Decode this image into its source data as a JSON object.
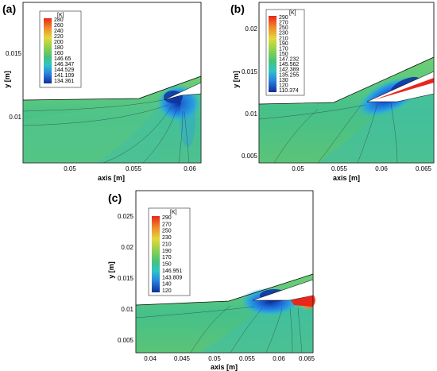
{
  "figure": {
    "panels": [
      {
        "letter": "(a)",
        "unit": "[K]",
        "legend": [
          "280",
          "260",
          "240",
          "220",
          "200",
          "180",
          "160",
          "146.65",
          "146.347",
          "144.529",
          "141.109",
          "134.361"
        ],
        "xticks": [
          "0.05",
          "0.055",
          "0.06"
        ],
        "yticks": [
          "0.015",
          "0.01"
        ],
        "xlabel": "axis [m]",
        "ylabel": "y [m]"
      },
      {
        "letter": "(b)",
        "unit": "[K]",
        "legend": [
          "290",
          "270",
          "250",
          "230",
          "210",
          "190",
          "170",
          "150",
          "147.232",
          "145.562",
          "142.389",
          "135.255",
          "130",
          "120",
          "110.374"
        ],
        "xticks": [
          "0.05",
          "0.055",
          "0.06",
          "0.065"
        ],
        "yticks": [
          "0.02",
          "0.015",
          "0.01",
          "0.005"
        ],
        "xlabel": "axis [m]",
        "ylabel": "y [m]"
      },
      {
        "letter": "(c)",
        "unit": "[K]",
        "legend": [
          "290",
          "270",
          "250",
          "230",
          "210",
          "190",
          "170",
          "150",
          "146.951",
          "143.809",
          "140",
          "120"
        ],
        "xticks": [
          "0.04",
          "0.045",
          "0.05",
          "0.055",
          "0.06",
          "0.065"
        ],
        "yticks": [
          "0.025",
          "0.02",
          "0.015",
          "0.01",
          "0.005"
        ],
        "xlabel": "axis [m]",
        "ylabel": "y [m]"
      }
    ],
    "colors": {
      "hot": "#e8261c",
      "warm": "#f6b640",
      "mid": "#9bd24a",
      "field": "#5fc578",
      "cool": "#36b7b4",
      "cold": "#1d64d6",
      "coldest": "#0e2f9a"
    }
  }
}
